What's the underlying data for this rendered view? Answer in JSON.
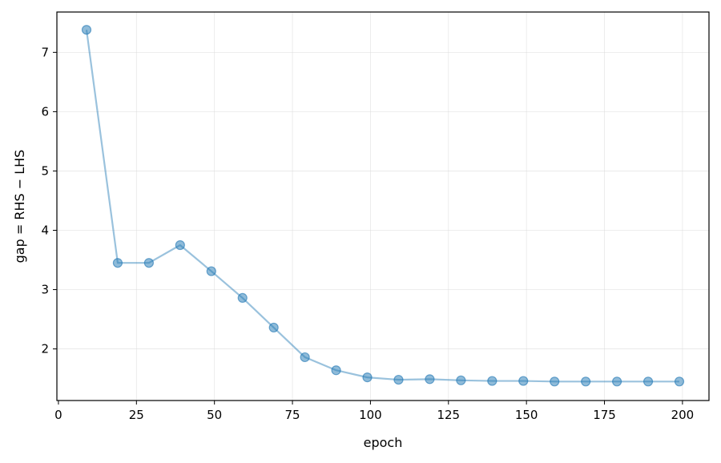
{
  "chart_data": {
    "type": "line",
    "title": "",
    "xlabel": "epoch",
    "ylabel": "gap = RHS − LHS",
    "xlim": [
      -0.5,
      208.5
    ],
    "ylim": [
      1.13,
      7.68
    ],
    "xticks": [
      0,
      25,
      50,
      75,
      100,
      125,
      150,
      175,
      200
    ],
    "yticks": [
      2,
      3,
      4,
      5,
      6,
      7
    ],
    "grid": true,
    "legend": "none",
    "series": [
      {
        "color": "#1f77b4",
        "x": [
          9,
          19,
          29,
          39,
          49,
          59,
          69,
          79,
          89,
          99,
          109,
          119,
          129,
          139,
          149,
          159,
          169,
          179,
          189,
          199
        ],
        "y": [
          7.38,
          3.45,
          3.45,
          3.75,
          3.31,
          2.86,
          2.36,
          1.86,
          1.64,
          1.52,
          1.48,
          1.49,
          1.47,
          1.46,
          1.46,
          1.45,
          1.45,
          1.45,
          1.45,
          1.45
        ]
      }
    ]
  }
}
